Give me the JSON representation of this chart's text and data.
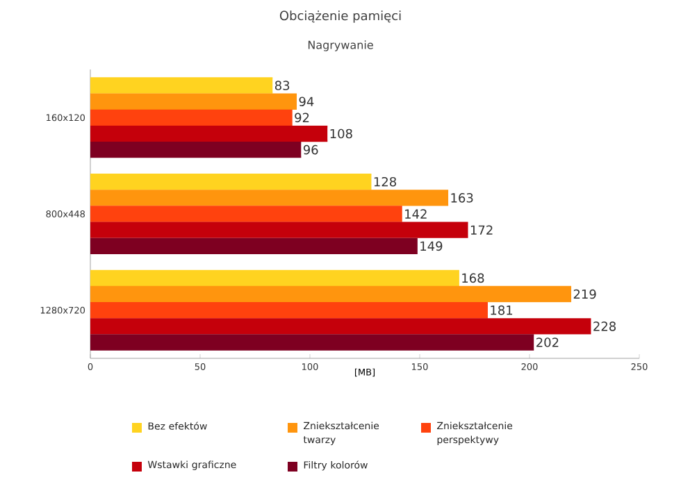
{
  "chart_data": {
    "type": "bar",
    "orientation": "horizontal",
    "title": "Obciążenie pamięci",
    "subtitle": "Nagrywanie",
    "xlabel": "[MB]",
    "categories": [
      "160x120",
      "800x448",
      "1280x720"
    ],
    "series": [
      {
        "name": "Bez efektów",
        "color": "#ffd320",
        "values": [
          83,
          128,
          168
        ]
      },
      {
        "name": "Zniekształcenie twarzy",
        "color": "#ff950e",
        "values": [
          94,
          163,
          219
        ]
      },
      {
        "name": "Zniekształcenie perspektywy",
        "color": "#ff420e",
        "values": [
          92,
          142,
          181
        ]
      },
      {
        "name": "Wstawki graficzne",
        "color": "#c5000b",
        "values": [
          108,
          172,
          228
        ]
      },
      {
        "name": "Filtry kolorów",
        "color": "#7e0021",
        "values": [
          96,
          149,
          202
        ]
      }
    ],
    "xlim": [
      0,
      250
    ],
    "xticks": [
      0,
      50,
      100,
      150,
      200,
      250
    ],
    "data_labels": true,
    "legend": "bottom",
    "grid": false
  }
}
